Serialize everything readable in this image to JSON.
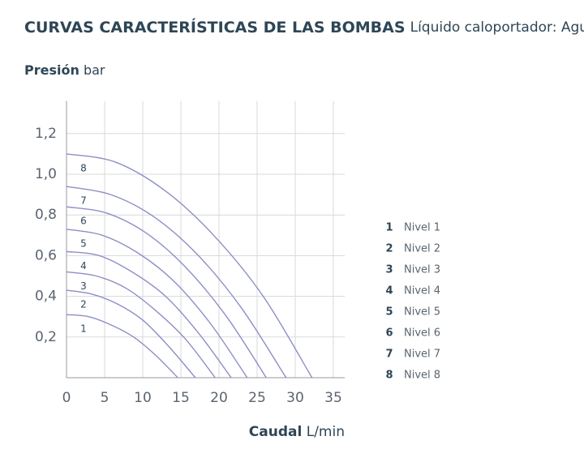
{
  "chart_data": {
    "type": "line",
    "title": "CURVAS CARACTERÍSTICAS DE LAS BOMBAS",
    "subtitle": "Líquido caloportador: Agua",
    "y_label": {
      "name": "Presión",
      "unit": "bar"
    },
    "x_label": {
      "name": "Caudal",
      "unit": "L/min"
    },
    "xlim": [
      0,
      36.5
    ],
    "ylim": [
      0,
      1.36
    ],
    "xticks": [
      0,
      5,
      10,
      15,
      20,
      25,
      30,
      35
    ],
    "yticks": [
      {
        "value": 0.2,
        "label": "0,2"
      },
      {
        "value": 0.4,
        "label": "0,4"
      },
      {
        "value": 0.6,
        "label": "0,6"
      },
      {
        "value": 0.8,
        "label": "0,8"
      },
      {
        "value": 1.0,
        "label": "1,0"
      },
      {
        "value": 1.2,
        "label": "1,2"
      }
    ],
    "grid": true,
    "legend": "right",
    "series": [
      {
        "label": "1",
        "name": "Nivel 1",
        "color": "#8c8fc6",
        "x": [
          0,
          2.9,
          5.8,
          8.8,
          11.7,
          14.6
        ],
        "values": [
          0.31,
          0.3,
          0.26,
          0.2,
          0.11,
          0
        ]
      },
      {
        "label": "2",
        "name": "Nivel 2",
        "color": "#8c8fc6",
        "x": [
          0,
          3.4,
          6.8,
          10.1,
          13.5,
          16.9
        ],
        "values": [
          0.43,
          0.41,
          0.36,
          0.28,
          0.15,
          0
        ]
      },
      {
        "label": "3",
        "name": "Nivel 3",
        "color": "#8c8fc6",
        "x": [
          0,
          3.9,
          7.8,
          11.7,
          15.6,
          19.5
        ],
        "values": [
          0.52,
          0.5,
          0.44,
          0.33,
          0.19,
          0
        ]
      },
      {
        "label": "4",
        "name": "Nivel 4",
        "color": "#8c8fc6",
        "x": [
          0,
          4.3,
          8.6,
          13,
          17.3,
          21.6
        ],
        "values": [
          0.62,
          0.6,
          0.52,
          0.4,
          0.22,
          0
        ]
      },
      {
        "label": "5",
        "name": "Nivel 5",
        "color": "#8c8fc6",
        "x": [
          0,
          4.7,
          9.5,
          14.2,
          19,
          23.7
        ],
        "values": [
          0.73,
          0.7,
          0.61,
          0.47,
          0.26,
          0
        ]
      },
      {
        "label": "6",
        "name": "Nivel 6",
        "color": "#8c8fc6",
        "x": [
          0,
          5.2,
          10.5,
          15.7,
          21,
          26.2
        ],
        "values": [
          0.84,
          0.81,
          0.71,
          0.54,
          0.3,
          0
        ]
      },
      {
        "label": "7",
        "name": "Nivel 7",
        "color": "#8c8fc6",
        "x": [
          0,
          5.8,
          11.5,
          17.3,
          23,
          28.8
        ],
        "values": [
          0.94,
          0.9,
          0.79,
          0.6,
          0.34,
          0
        ]
      },
      {
        "label": "8",
        "name": "Nivel 8",
        "color": "#8c8fc6",
        "x": [
          0,
          6.4,
          12.9,
          19.3,
          25.8,
          32.2
        ],
        "values": [
          1.1,
          1.06,
          0.92,
          0.7,
          0.4,
          0
        ]
      }
    ]
  }
}
